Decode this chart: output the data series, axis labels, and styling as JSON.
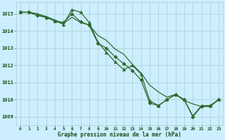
{
  "series": [
    {
      "x": [
        0,
        1,
        2,
        3,
        4,
        5,
        6,
        7,
        8,
        9,
        10,
        11,
        12,
        13,
        14,
        15,
        16,
        17,
        18,
        19,
        20,
        21,
        22,
        23
      ],
      "y": [
        1015.1,
        1015.1,
        1014.9,
        1014.8,
        1014.6,
        1014.5,
        1015.0,
        1014.55,
        1014.35,
        1013.3,
        1013.0,
        1012.5,
        1012.1,
        1011.7,
        1011.15,
        1009.8,
        1009.65,
        1010.0,
        1010.3,
        1010.0,
        1009.0,
        1009.6,
        1009.65,
        1010.0
      ],
      "color": "#2d6a2d",
      "marker": "D",
      "markersize": 2.5,
      "linewidth": 0.9
    },
    {
      "x": [
        0,
        1,
        2,
        3,
        4,
        5,
        6,
        7,
        8,
        9,
        10,
        11,
        12,
        13,
        14,
        15,
        16,
        17,
        18,
        19,
        20,
        21,
        22,
        23
      ],
      "y": [
        1015.1,
        1015.1,
        1015.0,
        1014.8,
        1014.6,
        1014.4,
        1015.25,
        1015.1,
        1014.5,
        1013.35,
        1012.75,
        1012.2,
        1011.75,
        1012.0,
        1011.5,
        1009.95,
        1009.65,
        1010.0,
        1010.3,
        1010.0,
        1009.05,
        1009.65,
        1009.65,
        1010.0
      ],
      "color": "#2d6a2d",
      "marker": "^",
      "markersize": 3.0,
      "linewidth": 0.9
    },
    {
      "x": [
        0,
        1,
        2,
        3,
        4,
        5,
        6,
        7,
        8,
        9,
        10,
        11,
        12,
        13,
        14,
        15,
        16,
        17,
        18,
        19,
        20,
        21,
        22,
        23
      ],
      "y": [
        1015.1,
        1015.1,
        1015.0,
        1014.85,
        1014.65,
        1014.45,
        1014.8,
        1014.5,
        1014.35,
        1013.75,
        1013.45,
        1012.95,
        1012.65,
        1012.05,
        1011.55,
        1010.85,
        1010.45,
        1010.15,
        1010.3,
        1009.95,
        1009.75,
        1009.6,
        1009.6,
        1010.0
      ],
      "color": "#2d6a2d",
      "marker": null,
      "markersize": 0,
      "linewidth": 0.9
    }
  ],
  "xlim": [
    -0.5,
    23.5
  ],
  "ylim": [
    1008.5,
    1015.7
  ],
  "yticks": [
    1009,
    1010,
    1011,
    1012,
    1013,
    1014,
    1015
  ],
  "xticks": [
    0,
    1,
    2,
    3,
    4,
    5,
    6,
    7,
    8,
    9,
    10,
    11,
    12,
    13,
    14,
    15,
    16,
    17,
    18,
    19,
    20,
    21,
    22,
    23
  ],
  "xlabel": "Graphe pression niveau de la mer (hPa)",
  "bg_color": "#cceeff",
  "grid_color": "#aacccc",
  "line_color": "#2d6a2d",
  "tick_color": "#1a4d1a",
  "label_color": "#1a4d1a",
  "xlabel_color": "#1a4d1a"
}
